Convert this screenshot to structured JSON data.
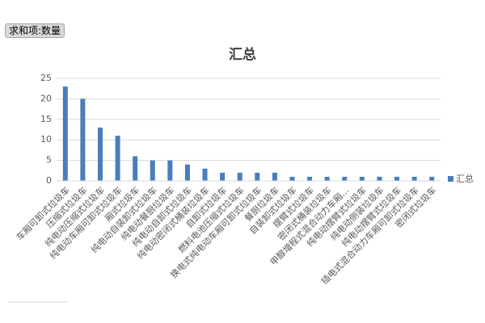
{
  "chart_data": {
    "type": "bar",
    "button": "求和项:数量",
    "title": "汇总",
    "categories": [
      "车厢可卸式垃圾车",
      "压缩式垃圾车",
      "纯电动压缩式垃圾车",
      "纯电动车厢可卸式垃圾车",
      "厢式垃圾车",
      "纯电动自装卸式垃圾车",
      "纯电动餐厨垃圾车",
      "纯电动自卸式垃圾车",
      "纯电动密闭式桶装垃圾车",
      "自卸式垃圾车",
      "燃料电池压缩式垃圾车",
      "换电式纯电动车厢可卸式垃圾车",
      "餐厨垃圾车",
      "自装卸式垃圾车",
      "摆臂式垃圾车",
      "密闭式桶装垃圾车",
      "甲醇增程式混合动力车厢…",
      "纯电动摆臂式垃圾车",
      "纯电动侧装垃圾车",
      "纯电动摆臂式垃圾车",
      "插电式混合动力车厢可卸式垃圾车",
      "密闭式垃圾车"
    ],
    "series": [
      {
        "name": "汇总",
        "color": "#4a7ebb",
        "values": [
          23,
          20,
          13,
          11,
          6,
          5,
          5,
          4,
          3,
          2,
          2,
          2,
          2,
          1,
          1,
          1,
          1,
          1,
          1,
          1,
          1,
          1
        ]
      }
    ],
    "ylim": [
      0,
      25
    ],
    "yticks": [
      0,
      5,
      10,
      15,
      20,
      25
    ],
    "grid": true,
    "legend": "right"
  }
}
